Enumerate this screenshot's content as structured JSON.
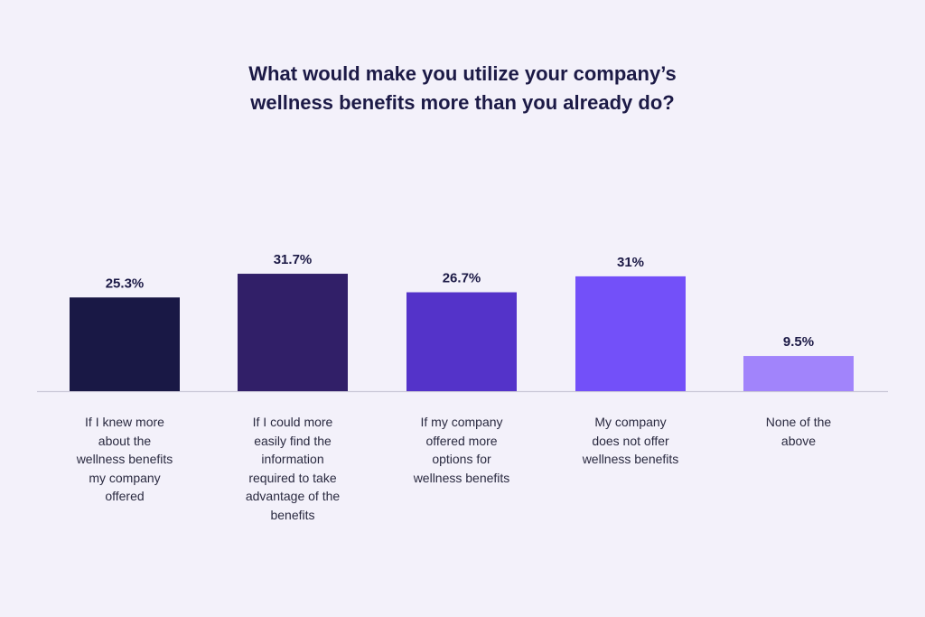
{
  "chart_data": {
    "type": "bar",
    "title_lines": [
      "What would make you utilize your company’s",
      "wellness benefits more than you already do?"
    ],
    "categories": [
      "If I knew more\nabout the\nwellness benefits\nmy company\noffered",
      "If I could more\neasily find the\ninformation\nrequired to take\nadvantage of the\nbenefits",
      "If my company\noffered more\noptions for\nwellness benefits",
      "My company\ndoes not offer\nwellness benefits",
      "None of the\nabove"
    ],
    "values": [
      25.3,
      31.7,
      26.7,
      31,
      9.5
    ],
    "value_labels": [
      "25.3%",
      "31.7%",
      "26.7%",
      "31%",
      "9.5%"
    ],
    "colors": [
      "#191845",
      "#311f68",
      "#5433c9",
      "#7350f9",
      "#a184fb"
    ],
    "ylim": [
      0,
      35
    ],
    "xlabel": "",
    "ylabel": "",
    "grid": false
  },
  "style": {
    "background": "#f3f1fa",
    "baseline_color": "#c9c6d6",
    "title_color": "#1c1a46"
  }
}
